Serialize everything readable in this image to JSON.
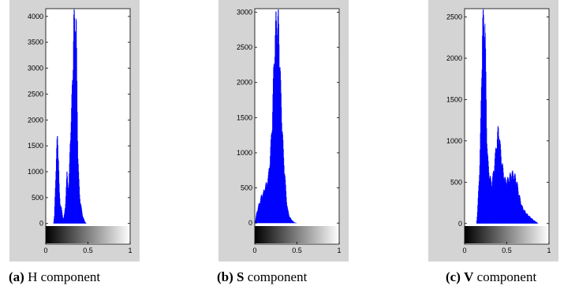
{
  "chart_data": [
    {
      "type": "histogram",
      "channel": "H",
      "caption": {
        "tag": "(a)",
        "letter": "H",
        "text": "component"
      },
      "xlim": [
        0,
        1
      ],
      "ylim": [
        -400,
        4150
      ],
      "yticks": [
        0,
        500,
        1000,
        1500,
        2000,
        2500,
        3000,
        3500,
        4000
      ],
      "xticks": [
        "0",
        "0.5",
        "1"
      ],
      "color": "#0000ff",
      "envelope": [
        [
          0.09,
          0
        ],
        [
          0.1,
          150
        ],
        [
          0.11,
          650
        ],
        [
          0.12,
          1250
        ],
        [
          0.13,
          1620
        ],
        [
          0.14,
          1780
        ],
        [
          0.15,
          1400
        ],
        [
          0.16,
          650
        ],
        [
          0.17,
          400
        ],
        [
          0.18,
          380
        ],
        [
          0.19,
          250
        ],
        [
          0.2,
          140
        ],
        [
          0.21,
          100
        ],
        [
          0.22,
          200
        ],
        [
          0.23,
          350
        ],
        [
          0.24,
          750
        ],
        [
          0.25,
          1050
        ],
        [
          0.26,
          900
        ],
        [
          0.27,
          700
        ],
        [
          0.28,
          1200
        ],
        [
          0.29,
          1900
        ],
        [
          0.3,
          2100
        ],
        [
          0.31,
          2700
        ],
        [
          0.32,
          3300
        ],
        [
          0.33,
          4150
        ],
        [
          0.34,
          4150
        ],
        [
          0.35,
          4150
        ],
        [
          0.36,
          4150
        ],
        [
          0.37,
          2700
        ],
        [
          0.38,
          1500
        ],
        [
          0.39,
          950
        ],
        [
          0.4,
          600
        ],
        [
          0.41,
          450
        ],
        [
          0.42,
          330
        ],
        [
          0.43,
          220
        ],
        [
          0.44,
          140
        ],
        [
          0.45,
          90
        ],
        [
          0.46,
          50
        ],
        [
          0.47,
          20
        ],
        [
          0.48,
          0
        ]
      ]
    },
    {
      "type": "histogram",
      "channel": "S",
      "caption": {
        "tag": "(b)",
        "letter": "S",
        "text": "component"
      },
      "xlim": [
        0,
        1
      ],
      "ylim": [
        -300,
        3050
      ],
      "yticks": [
        0,
        500,
        1000,
        1500,
        2000,
        2500,
        3000
      ],
      "xticks": [
        "0",
        "0.5",
        "1"
      ],
      "color": "#0000ff",
      "envelope": [
        [
          0.0,
          0
        ],
        [
          0.02,
          150
        ],
        [
          0.04,
          250
        ],
        [
          0.06,
          330
        ],
        [
          0.08,
          420
        ],
        [
          0.1,
          450
        ],
        [
          0.12,
          550
        ],
        [
          0.14,
          600
        ],
        [
          0.16,
          700
        ],
        [
          0.18,
          1000
        ],
        [
          0.2,
          1400
        ],
        [
          0.21,
          1800
        ],
        [
          0.22,
          2200
        ],
        [
          0.23,
          2500
        ],
        [
          0.24,
          2850
        ],
        [
          0.25,
          3050
        ],
        [
          0.26,
          3050
        ],
        [
          0.27,
          3050
        ],
        [
          0.28,
          3050
        ],
        [
          0.29,
          2700
        ],
        [
          0.3,
          2300
        ],
        [
          0.31,
          1900
        ],
        [
          0.32,
          1600
        ],
        [
          0.33,
          1300
        ],
        [
          0.34,
          1000
        ],
        [
          0.35,
          850
        ],
        [
          0.36,
          650
        ],
        [
          0.37,
          450
        ],
        [
          0.38,
          300
        ],
        [
          0.39,
          200
        ],
        [
          0.4,
          150
        ],
        [
          0.41,
          100
        ],
        [
          0.43,
          60
        ],
        [
          0.45,
          30
        ],
        [
          0.47,
          10
        ],
        [
          0.5,
          0
        ]
      ]
    },
    {
      "type": "histogram",
      "channel": "V",
      "caption": {
        "tag": "(c)",
        "letter": "V",
        "text": "component"
      },
      "xlim": [
        0,
        1
      ],
      "ylim": [
        -250,
        2600
      ],
      "yticks": [
        0,
        500,
        1000,
        1500,
        2000,
        2500
      ],
      "xticks": [
        "0",
        "0.5",
        "1"
      ],
      "color": "#0000ff",
      "envelope": [
        [
          0.14,
          0
        ],
        [
          0.15,
          150
        ],
        [
          0.16,
          350
        ],
        [
          0.17,
          550
        ],
        [
          0.18,
          900
        ],
        [
          0.19,
          1300
        ],
        [
          0.2,
          1900
        ],
        [
          0.21,
          2600
        ],
        [
          0.22,
          2600
        ],
        [
          0.23,
          2600
        ],
        [
          0.24,
          2600
        ],
        [
          0.25,
          2000
        ],
        [
          0.26,
          1300
        ],
        [
          0.27,
          900
        ],
        [
          0.28,
          750
        ],
        [
          0.29,
          650
        ],
        [
          0.3,
          600
        ],
        [
          0.31,
          550
        ],
        [
          0.32,
          520
        ],
        [
          0.33,
          580
        ],
        [
          0.34,
          650
        ],
        [
          0.35,
          750
        ],
        [
          0.36,
          850
        ],
        [
          0.37,
          950
        ],
        [
          0.38,
          1050
        ],
        [
          0.39,
          1150
        ],
        [
          0.4,
          1220
        ],
        [
          0.41,
          1150
        ],
        [
          0.42,
          1000
        ],
        [
          0.43,
          900
        ],
        [
          0.44,
          800
        ],
        [
          0.45,
          720
        ],
        [
          0.46,
          650
        ],
        [
          0.47,
          600
        ],
        [
          0.48,
          560
        ],
        [
          0.5,
          550
        ],
        [
          0.52,
          580
        ],
        [
          0.54,
          620
        ],
        [
          0.56,
          650
        ],
        [
          0.58,
          630
        ],
        [
          0.6,
          600
        ],
        [
          0.62,
          520
        ],
        [
          0.64,
          400
        ],
        [
          0.66,
          300
        ],
        [
          0.68,
          220
        ],
        [
          0.7,
          180
        ],
        [
          0.72,
          150
        ],
        [
          0.74,
          120
        ],
        [
          0.76,
          100
        ],
        [
          0.78,
          80
        ],
        [
          0.8,
          60
        ],
        [
          0.82,
          40
        ],
        [
          0.85,
          20
        ],
        [
          0.87,
          0
        ]
      ]
    }
  ]
}
